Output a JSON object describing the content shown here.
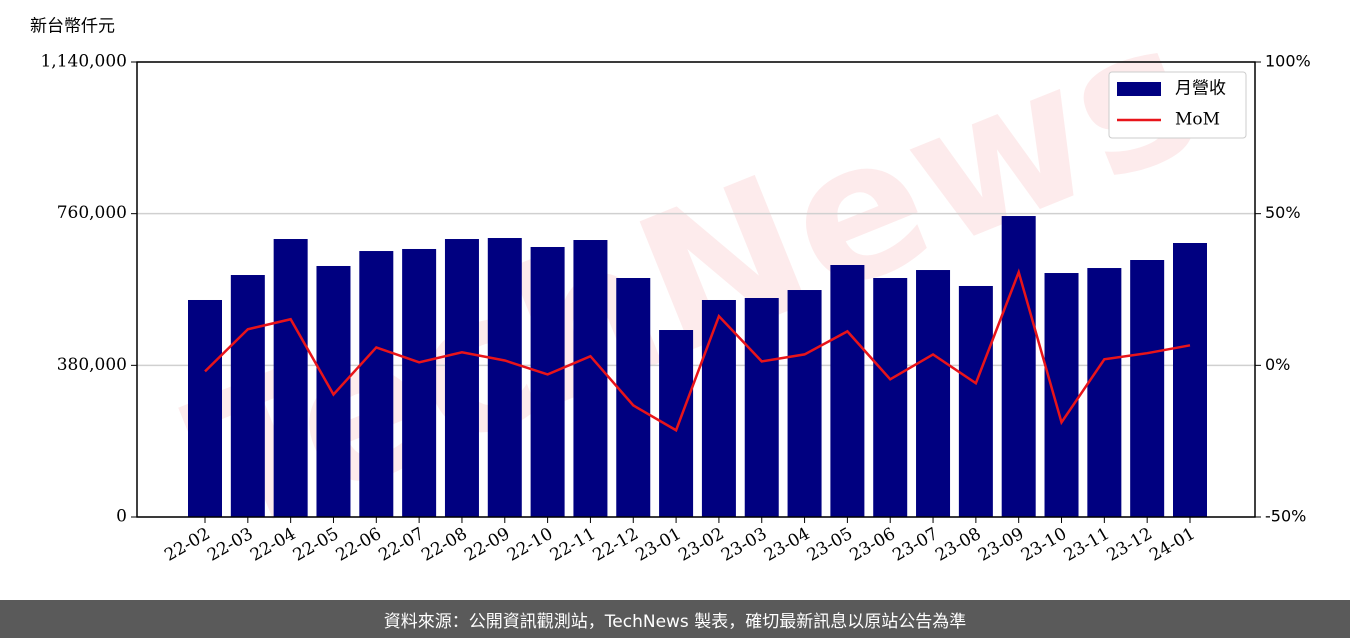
{
  "chart_data": {
    "type": "bar",
    "y_label": "新台幣仟元",
    "watermark": "TechNews",
    "source": "資料來源：公開資訊觀測站，TechNews 製表，確切最新訊息以原站公告為準",
    "categories": [
      "22-02",
      "22-03",
      "22-04",
      "22-05",
      "22-06",
      "22-07",
      "22-08",
      "22-09",
      "22-10",
      "22-11",
      "22-12",
      "23-01",
      "23-02",
      "23-03",
      "23-04",
      "23-05",
      "23-06",
      "23-07",
      "23-08",
      "23-09",
      "23-10",
      "23-11",
      "23-12",
      "24-01"
    ],
    "series": [
      {
        "name": "月營收",
        "type": "bar",
        "color": "#000080",
        "values": [
          543700,
          606300,
          696500,
          628900,
          666400,
          671500,
          696500,
          699000,
          676500,
          694000,
          598800,
          468500,
          543700,
          548700,
          568700,
          631400,
          598800,
          618800,
          578800,
          754100,
          611300,
          623800,
          643900,
          686500
        ]
      },
      {
        "name": "MoM",
        "type": "line",
        "axis": "y2",
        "color": "#e8141a",
        "values": [
          -2,
          11.9,
          15.2,
          -9.6,
          5.9,
          1.0,
          4.3,
          1.6,
          -3.0,
          3.0,
          -13.2,
          -21.4,
          16.2,
          1.3,
          3.6,
          11.2,
          -4.6,
          3.6,
          -5.9,
          30.7,
          -18.8,
          2.0,
          4.0,
          6.6
        ]
      }
    ],
    "ylim": [
      0,
      1140000
    ],
    "yticks": [
      0,
      {
        "value": 380000,
        "label": "380,000"
      },
      {
        "value": 760000,
        "label": "760,000"
      },
      {
        "value": 1140000,
        "label": "1,140,000"
      }
    ],
    "y2lim": [
      -50,
      100
    ],
    "y2ticks": [
      {
        "value": -50,
        "label": "-50%"
      },
      {
        "value": 0,
        "label": "0%"
      },
      {
        "value": 50,
        "label": "50%"
      },
      {
        "value": 100,
        "label": "100%"
      }
    ],
    "grid": true,
    "legend": "upper right"
  }
}
